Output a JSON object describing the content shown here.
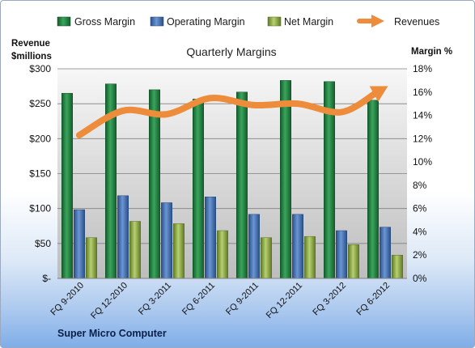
{
  "chart_data": {
    "type": "bar",
    "title": "Quarterly Margins",
    "y_left_label": [
      "Revenue",
      "$millions"
    ],
    "y_right_label": "Margin %",
    "footer_label": "Super Micro Computer",
    "categories": [
      "FQ 9-2010",
      "FQ 12-2010",
      "FQ 3-2011",
      "FQ 6-2011",
      "FQ 9-2011",
      "FQ 12-2011",
      "FQ 3-2012",
      "FQ 6-2012"
    ],
    "y_left_ticks": [
      "$-",
      "$50",
      "$100",
      "$150",
      "$200",
      "$250",
      "$300"
    ],
    "y_left_lim": [
      0,
      300
    ],
    "y_right_ticks": [
      "0%",
      "2%",
      "4%",
      "6%",
      "8%",
      "10%",
      "12%",
      "14%",
      "16%",
      "18%"
    ],
    "y_right_lim": [
      0,
      18
    ],
    "grid": true,
    "legend_position": "top",
    "series": [
      {
        "name": "Gross Margin",
        "kind": "bar",
        "axis": "right",
        "color": "#2e8b4a",
        "values": [
          15.9,
          16.7,
          16.2,
          15.4,
          16.0,
          17.0,
          16.9,
          15.3
        ]
      },
      {
        "name": "Operating Margin",
        "kind": "bar",
        "axis": "right",
        "color": "#4a78b8",
        "values": [
          5.9,
          7.1,
          6.5,
          7.0,
          5.5,
          5.5,
          4.1,
          4.4
        ]
      },
      {
        "name": "Net Margin",
        "kind": "bar",
        "axis": "right",
        "color": "#9ab650",
        "values": [
          3.5,
          4.9,
          4.7,
          4.1,
          3.5,
          3.6,
          2.9,
          2.0
        ]
      },
      {
        "name": "Revenues",
        "kind": "line",
        "axis": "left",
        "color": "#ed8c3a",
        "values": [
          205,
          240,
          235,
          258,
          248,
          250,
          238,
          273
        ]
      }
    ]
  }
}
